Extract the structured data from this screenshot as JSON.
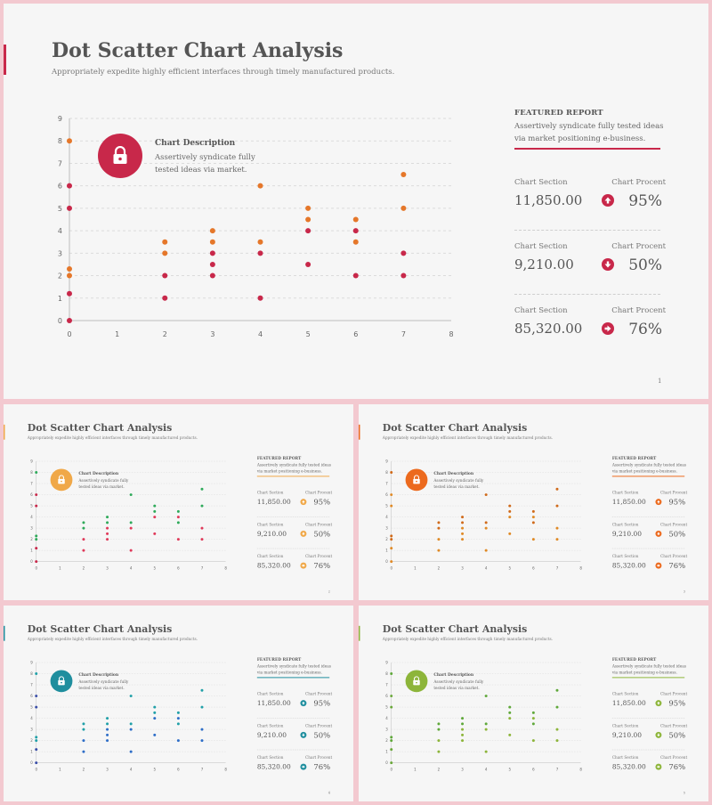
{
  "slides": [
    {
      "page_number": "1",
      "colors": {
        "accent": "#c8284a",
        "point_a": "#c8284a",
        "point_b": "#e5772a",
        "axis_points": "#c8284a"
      }
    },
    {
      "page_number": "2",
      "colors": {
        "accent": "#f0a848",
        "point_a": "#e03a5a",
        "point_b": "#2eaa5a",
        "axis_points": "#c8284a"
      }
    },
    {
      "page_number": "3",
      "colors": {
        "accent": "#ec6a1e",
        "point_a": "#e08a26",
        "point_b": "#d06a1a",
        "axis_points": "#e08a26"
      }
    },
    {
      "page_number": "4",
      "colors": {
        "accent": "#1f8e9e",
        "point_a": "#2e6ec8",
        "point_b": "#20a0a8",
        "axis_points": "#3a4ea8"
      }
    },
    {
      "page_number": "5",
      "colors": {
        "accent": "#8db53a",
        "point_a": "#8db53a",
        "point_b": "#5fa83a",
        "axis_points": "#6aa83a"
      }
    }
  ],
  "title": "Dot Scatter Chart Analysis",
  "subtitle": "Appropriately expedite highly efficient interfaces through timely manufactured products.",
  "chart_description": {
    "title": "Chart Description",
    "text": "Assertively syndicate fully  tested ideas via market.",
    "icon": "lock-icon"
  },
  "featured_report": {
    "heading": "FEATURED REPORT",
    "text": "Assertively syndicate fully  tested ideas via market positioning e-business."
  },
  "stats": [
    {
      "label": "Chart Section",
      "value": "11,850.00",
      "pct_label": "Chart Procent",
      "pct": "95%",
      "icon": "arrow-up-icon"
    },
    {
      "label": "Chart Section",
      "value": "9,210.00",
      "pct_label": "Chart Procent",
      "pct": "50%",
      "icon": "arrow-down-icon"
    },
    {
      "label": "Chart Section",
      "value": "85,320.00",
      "pct_label": "Chart Procent",
      "pct": "76%",
      "icon": "arrow-right-icon"
    }
  ],
  "chart_data": {
    "type": "scatter",
    "x_ticks": [
      "0",
      "1",
      "2",
      "3",
      "4",
      "5",
      "6",
      "7",
      "8"
    ],
    "y_ticks": [
      "0",
      "1",
      "2",
      "3",
      "4",
      "5",
      "6",
      "7",
      "8",
      "9"
    ],
    "xlim": [
      0,
      8
    ],
    "ylim": [
      0,
      9
    ],
    "grid": "horizontal dashed",
    "series": [
      {
        "points": [
          [
            0,
            0
          ],
          [
            0,
            1.2
          ],
          [
            0,
            5
          ],
          [
            0,
            6
          ],
          [
            2,
            1
          ],
          [
            2,
            2
          ],
          [
            3,
            2
          ],
          [
            3,
            2.5
          ],
          [
            3,
            3
          ],
          [
            4,
            1
          ],
          [
            4,
            3
          ],
          [
            5,
            2.5
          ],
          [
            5,
            4
          ],
          [
            6,
            2
          ],
          [
            6,
            4
          ],
          [
            7,
            2
          ],
          [
            7,
            3
          ]
        ]
      },
      {
        "points": [
          [
            0,
            2
          ],
          [
            0,
            2.3
          ],
          [
            0,
            8
          ],
          [
            2,
            3
          ],
          [
            2,
            3.5
          ],
          [
            3,
            3.5
          ],
          [
            3,
            4
          ],
          [
            4,
            3.5
          ],
          [
            4,
            6
          ],
          [
            5,
            4.5
          ],
          [
            5,
            5
          ],
          [
            6,
            3.5
          ],
          [
            6,
            4.5
          ],
          [
            7,
            5
          ],
          [
            7,
            6.5
          ]
        ]
      }
    ]
  }
}
